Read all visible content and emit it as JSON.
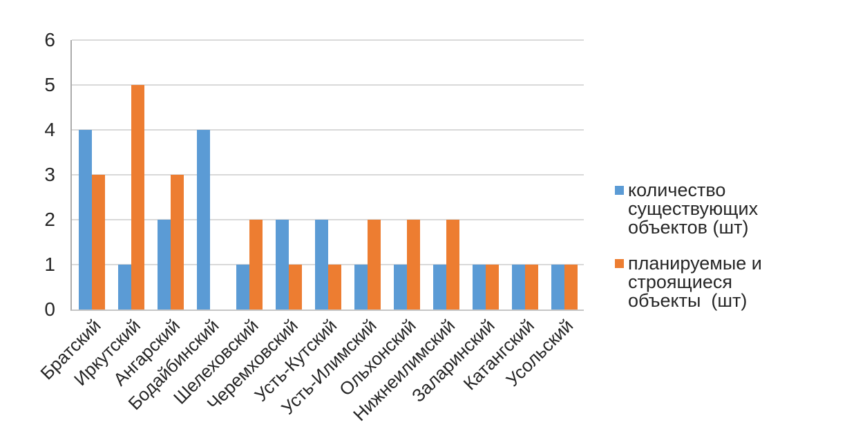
{
  "chart_data": {
    "type": "bar",
    "title": "",
    "xlabel": "",
    "ylabel": "",
    "categories": [
      "Братский",
      "Иркутский",
      "Ангарский",
      "Бодайбинский",
      "Шелеховский",
      "Черемховский",
      "Усть-Кутский",
      "Усть-Илимский",
      "Ольхонский",
      "Нижнеилимский",
      "Заларинский",
      "Катангский",
      "Усольский"
    ],
    "series": [
      {
        "name": "количество существующих объектов (шт)",
        "color": "#5B9BD5",
        "values": [
          4,
          1,
          2,
          4,
          1,
          2,
          2,
          1,
          1,
          1,
          1,
          1,
          1
        ]
      },
      {
        "name": "планируемые и строящиеся объекты  (шт)",
        "color": "#ED7D31",
        "values": [
          3,
          5,
          3,
          0,
          2,
          1,
          1,
          2,
          2,
          2,
          1,
          1,
          1
        ]
      }
    ],
    "y_ticks": [
      0,
      1,
      2,
      3,
      4,
      5,
      6
    ],
    "ylim": [
      0,
      6
    ],
    "grid": true,
    "legend_position": "right",
    "legend": [
      {
        "color": "#5B9BD5",
        "lines": [
          "количество существующих",
          "объектов (шт)"
        ]
      },
      {
        "color": "#ED7D31",
        "lines": [
          "планируемые и строящиеся",
          "объекты  (шт)"
        ]
      }
    ]
  }
}
